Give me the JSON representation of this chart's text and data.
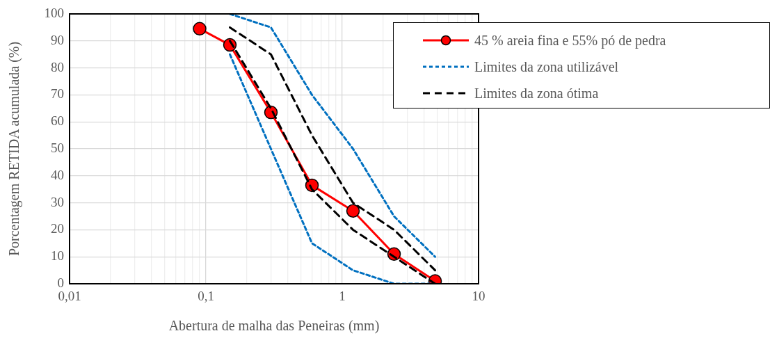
{
  "chart_data": {
    "type": "line",
    "xlabel": "Abertura de malha das Peneiras (mm)",
    "ylabel": "Porcentagem RETIDA acumulada (%)",
    "log": "x",
    "grid": true,
    "legend": "top right",
    "xlim": [
      0.01,
      10
    ],
    "xticks": [
      {
        "value": 0.01,
        "label": "0,01"
      },
      {
        "value": 0.02,
        "label": null
      },
      {
        "value": 0.03,
        "label": null
      },
      {
        "value": 0.04,
        "label": null
      },
      {
        "value": 0.05,
        "label": null
      },
      {
        "value": 0.06,
        "label": null
      },
      {
        "value": 0.07,
        "label": null
      },
      {
        "value": 0.08,
        "label": null
      },
      {
        "value": 0.09,
        "label": null
      },
      {
        "value": 0.1,
        "label": "0,1"
      },
      {
        "value": 0.2,
        "label": null
      },
      {
        "value": 0.3,
        "label": null
      },
      {
        "value": 0.4,
        "label": null
      },
      {
        "value": 0.5,
        "label": null
      },
      {
        "value": 0.6,
        "label": null
      },
      {
        "value": 0.7,
        "label": null
      },
      {
        "value": 0.8,
        "label": null
      },
      {
        "value": 0.9,
        "label": null
      },
      1,
      {
        "value": 2,
        "label": null
      },
      {
        "value": 3,
        "label": null
      },
      {
        "value": 4,
        "label": null
      },
      {
        "value": 5,
        "label": null
      },
      {
        "value": 6,
        "label": null
      },
      {
        "value": 7,
        "label": null
      },
      {
        "value": 8,
        "label": null
      },
      {
        "value": 9,
        "label": null
      },
      10
    ],
    "ylim": [
      0,
      100
    ],
    "yticks": [
      0,
      10,
      20,
      30,
      40,
      50,
      60,
      70,
      80,
      90,
      100
    ],
    "series": [
      {
        "name": "45 % areia fina  e 55% pó de pedra",
        "color": "#ff0000",
        "marker": "circle",
        "line_style": "solid",
        "x": [
          0.09,
          0.15,
          0.3,
          0.6,
          1.2,
          2.4,
          4.8
        ],
        "values": [
          94.5,
          88.5,
          63.5,
          36.5,
          27,
          11,
          1
        ]
      },
      {
        "name": "Limites da zona utilizável",
        "color": "#0070c0",
        "marker": "none",
        "line_style": "dotted",
        "x": [
          0.15,
          0.3,
          0.6,
          1.2,
          2.4,
          4.8
        ],
        "values": [
          100,
          95,
          70,
          50,
          25,
          10
        ]
      },
      {
        "color": "#0070c0",
        "marker": "none",
        "line_style": "dotted",
        "x": [
          0.15,
          0.3,
          0.6,
          1.2,
          2.4,
          4.8
        ],
        "values": [
          85,
          50,
          15,
          5,
          0,
          0
        ]
      },
      {
        "name": "Limites da zona ótima",
        "color": "#000000",
        "marker": "none",
        "line_style": "dashed",
        "x": [
          0.15,
          0.3,
          0.6,
          1.2,
          2.4,
          4.8
        ],
        "values": [
          95,
          85,
          55,
          30,
          20,
          5
        ]
      },
      {
        "color": "#000000",
        "marker": "none",
        "line_style": "dashed",
        "x": [
          0.15,
          0.3,
          0.6,
          1.2,
          2.4,
          4.8
        ],
        "values": [
          90,
          65,
          35,
          20,
          10,
          0
        ]
      }
    ]
  }
}
